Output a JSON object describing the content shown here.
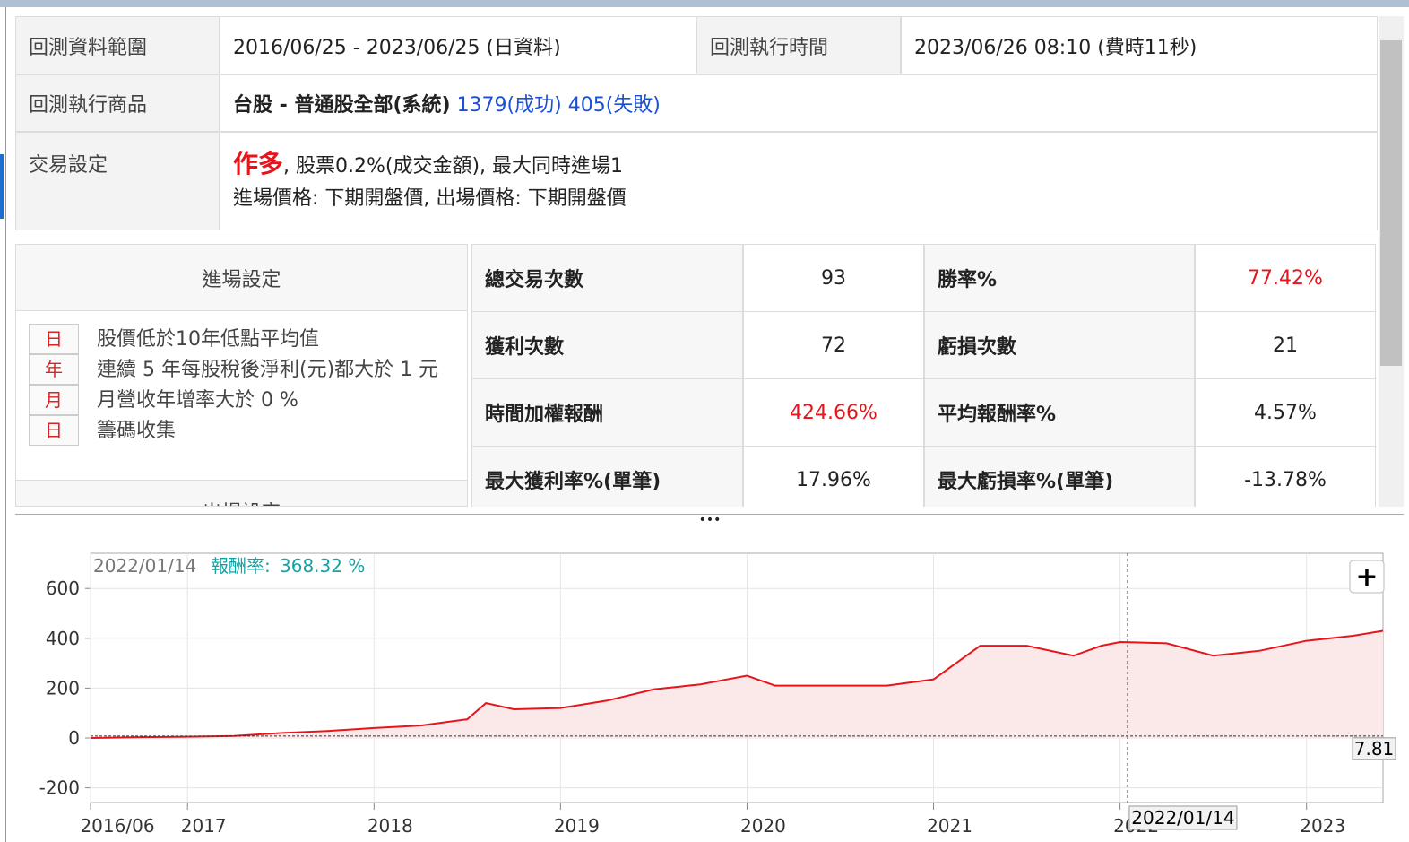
{
  "summary": {
    "range_label": "回測資料範圍",
    "range": "2016/06/25 - 2023/06/25 (日資料)",
    "run_time_label": "回測執行時間",
    "run_time": "2023/06/26 08:10 (費時11秒)",
    "products_label": "回測執行商品",
    "products": "台股 - 普通股全部(系統)",
    "success": "1379(成功)",
    "failed": "405(失敗)",
    "trade_label": "交易設定",
    "direction": "作多",
    "trade_line1": ", 股票0.2%(成交金額), 最大同時進場1",
    "trade_line2": "進場價格: 下期開盤價, 出場價格: 下期開盤價"
  },
  "entry": {
    "title": "進場設定",
    "conditions": [
      {
        "freq": "日",
        "text": "股價低於10年低點平均值"
      },
      {
        "freq": "年",
        "text": "連續 5 年每股稅後淨利(元)都大於 1 元"
      },
      {
        "freq": "月",
        "text": "月營收年增率大於 0 %"
      },
      {
        "freq": "日",
        "text": "籌碼收集"
      }
    ],
    "exit_title": "出場設定"
  },
  "stats": {
    "rows": [
      [
        "總交易次數",
        "93",
        "勝率%",
        "77.42%"
      ],
      [
        "獲利次數",
        "72",
        "虧損次數",
        "21"
      ],
      [
        "時間加權報酬",
        "424.66%",
        "平均報酬率%",
        "4.57%"
      ],
      [
        "最大獲利率%(單筆)",
        "17.96%",
        "最大虧損率%(單筆)",
        "-13.78%"
      ]
    ]
  },
  "splitter": "•••",
  "chart_data": {
    "type": "line",
    "color": "#e8141b",
    "area_color": "#fbe9e9",
    "x": [
      2016.48,
      2016.75,
      2017.0,
      2017.25,
      2017.5,
      2017.75,
      2018.0,
      2018.25,
      2018.5,
      2018.6,
      2018.75,
      2019.0,
      2019.25,
      2019.5,
      2019.75,
      2020.0,
      2020.15,
      2020.5,
      2020.75,
      2021.0,
      2021.25,
      2021.5,
      2021.75,
      2021.9,
      2022.0,
      2022.25,
      2022.5,
      2022.75,
      2023.0,
      2023.25,
      2023.41
    ],
    "values": [
      0,
      3,
      5,
      8,
      20,
      28,
      40,
      50,
      75,
      140,
      115,
      120,
      150,
      195,
      215,
      250,
      210,
      210,
      210,
      235,
      370,
      370,
      330,
      370,
      385,
      380,
      330,
      350,
      390,
      410,
      430
    ],
    "xlim": [
      2016.48,
      2023.41
    ],
    "xticks": [
      {
        "value": 2016.48,
        "label": "2016/06"
      },
      2017,
      2018,
      2019,
      2020,
      2021,
      2022,
      2023
    ],
    "ylim": [
      -259,
      741
    ],
    "yticks": [
      -200,
      0,
      200,
      400,
      600
    ],
    "grid": true,
    "tooltip_date": "2022/01/14",
    "tooltip_label": "報酬率:",
    "tooltip_value": "368.32 %",
    "crosshair_x": 2022.04,
    "crosshair_label": "2022/01/14",
    "baseline": 7.81,
    "zoom_button": "+"
  }
}
